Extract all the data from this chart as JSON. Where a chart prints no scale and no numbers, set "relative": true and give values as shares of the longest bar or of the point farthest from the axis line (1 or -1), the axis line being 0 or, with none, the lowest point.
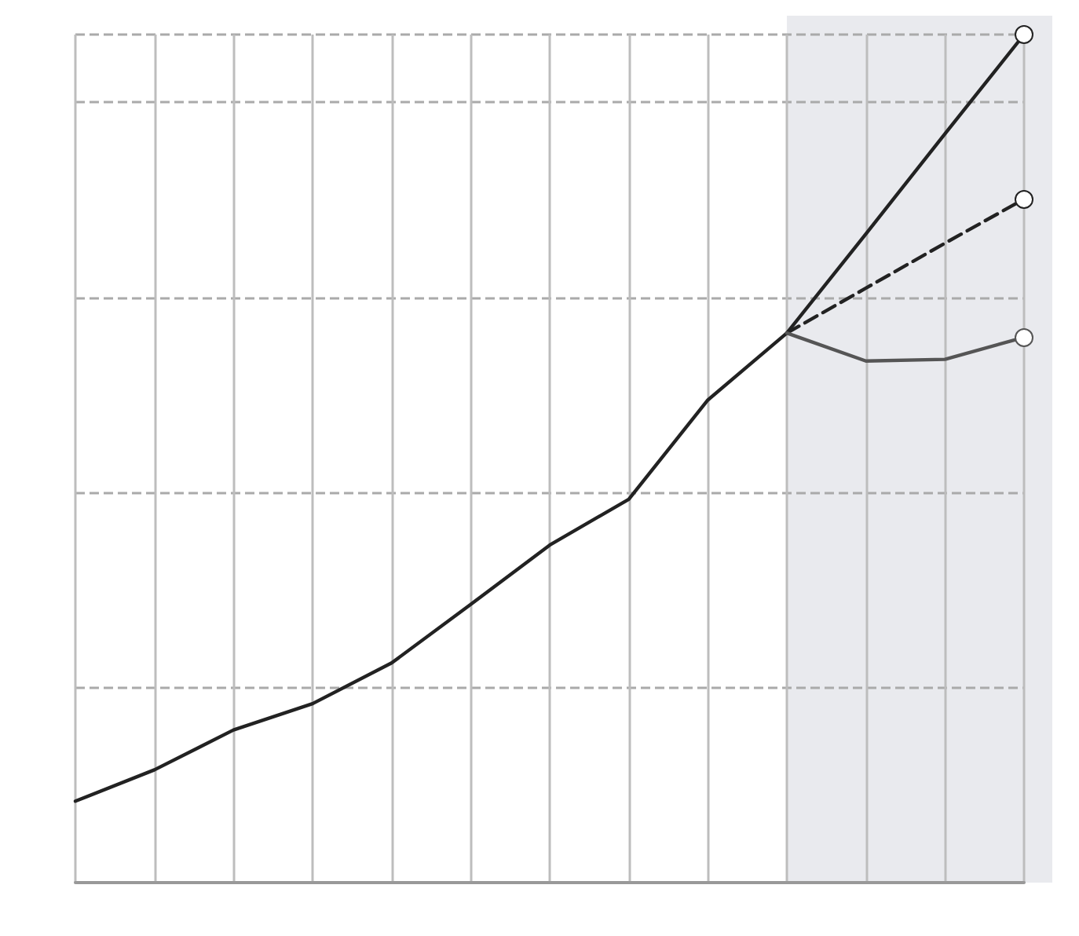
{
  "chart_data": {
    "type": "line",
    "relative": true,
    "categories": [
      null,
      null,
      null,
      null,
      null,
      null,
      null,
      null,
      null,
      null,
      null,
      null,
      null
    ],
    "series": [
      {
        "color": "#222222",
        "values": [
          0.096,
          0.133,
          0.18,
          0.211,
          0.259,
          0.328,
          0.398,
          0.452,
          0.569,
          0.648,
          0.765,
          0.883,
          1.0
        ]
      },
      {
        "color": "#222222",
        "line_style": "dashed",
        "values": [
          null,
          null,
          null,
          null,
          null,
          null,
          null,
          null,
          null,
          0.648,
          0.701,
          0.754,
          0.806
        ]
      },
      {
        "color": "#555555",
        "values": [
          null,
          null,
          null,
          null,
          null,
          null,
          null,
          null,
          null,
          0.648,
          0.615,
          0.617,
          0.643
        ]
      }
    ],
    "grid": true
  }
}
